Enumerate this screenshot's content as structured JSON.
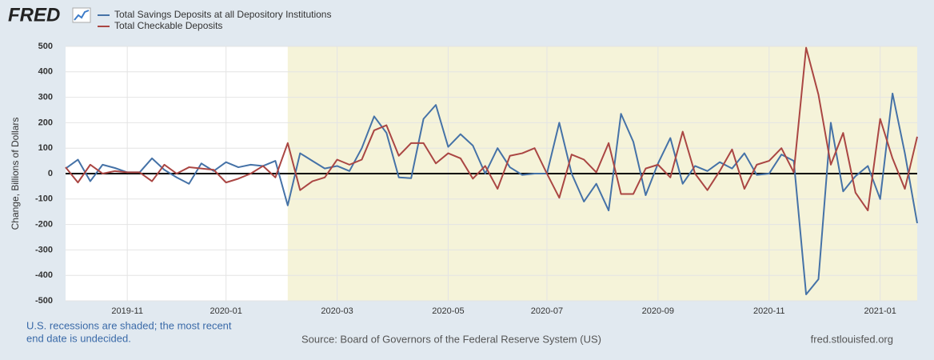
{
  "logo": "FRED",
  "chart_data": {
    "type": "line",
    "y_label": "Change, Billions of Dollars",
    "ylim": [
      -500,
      500
    ],
    "yticks": [
      -500,
      -400,
      -300,
      -200,
      -100,
      0,
      100,
      200,
      300,
      400,
      500
    ],
    "grid": true,
    "categories": [
      null,
      null,
      null,
      null,
      null,
      "2019-11",
      null,
      null,
      null,
      null,
      null,
      null,
      null,
      "2020-01",
      null,
      null,
      null,
      null,
      null,
      null,
      null,
      null,
      "2020-03",
      null,
      null,
      null,
      null,
      null,
      null,
      null,
      null,
      "2020-05",
      null,
      null,
      null,
      null,
      null,
      null,
      null,
      "2020-07",
      null,
      null,
      null,
      null,
      null,
      null,
      null,
      null,
      "2020-09",
      null,
      null,
      null,
      null,
      null,
      null,
      null,
      null,
      "2020-11",
      null,
      null,
      null,
      null,
      null,
      null,
      null,
      null,
      "2021-01",
      null,
      null,
      null
    ],
    "recession_start": 18,
    "recession_color": "#f5f3d9",
    "series": [
      {
        "name": "Total Savings Deposits at all Depository Institutions",
        "color": "#4572a7",
        "values": [
          20,
          55,
          -30,
          35,
          22,
          5,
          5,
          60,
          15,
          -15,
          -40,
          40,
          10,
          45,
          25,
          35,
          30,
          50,
          -125,
          80,
          50,
          20,
          30,
          10,
          100,
          225,
          160,
          -15,
          -18,
          215,
          270,
          105,
          155,
          110,
          0,
          100,
          25,
          -5,
          0,
          0,
          200,
          0,
          -110,
          -40,
          -145,
          235,
          125,
          -85,
          40,
          140,
          -40,
          30,
          10,
          45,
          20,
          80,
          -5,
          0,
          75,
          50,
          -475,
          -415,
          200,
          -70,
          -10,
          30,
          -100,
          315,
          80,
          -195
        ]
      },
      {
        "name": "Total Checkable Deposits",
        "color": "#aa4643",
        "values": [
          25,
          -35,
          35,
          0,
          10,
          5,
          5,
          -30,
          35,
          0,
          25,
          20,
          15,
          -35,
          -20,
          0,
          30,
          -15,
          120,
          -65,
          -30,
          -15,
          55,
          35,
          55,
          170,
          190,
          70,
          120,
          120,
          40,
          80,
          60,
          -20,
          30,
          -60,
          70,
          80,
          100,
          0,
          -95,
          75,
          55,
          5,
          120,
          -80,
          -80,
          20,
          35,
          -15,
          165,
          0,
          -65,
          10,
          95,
          -60,
          35,
          50,
          100,
          5,
          495,
          310,
          35,
          160,
          -75,
          -145,
          215,
          60,
          -60,
          145
        ]
      }
    ],
    "note": [
      "U.S. recessions are shaded; the most recent",
      "end date is undecided."
    ],
    "source": "Source: Board of Governors of the Federal Reserve System (US)",
    "site": "fred.stlouisfed.org"
  }
}
